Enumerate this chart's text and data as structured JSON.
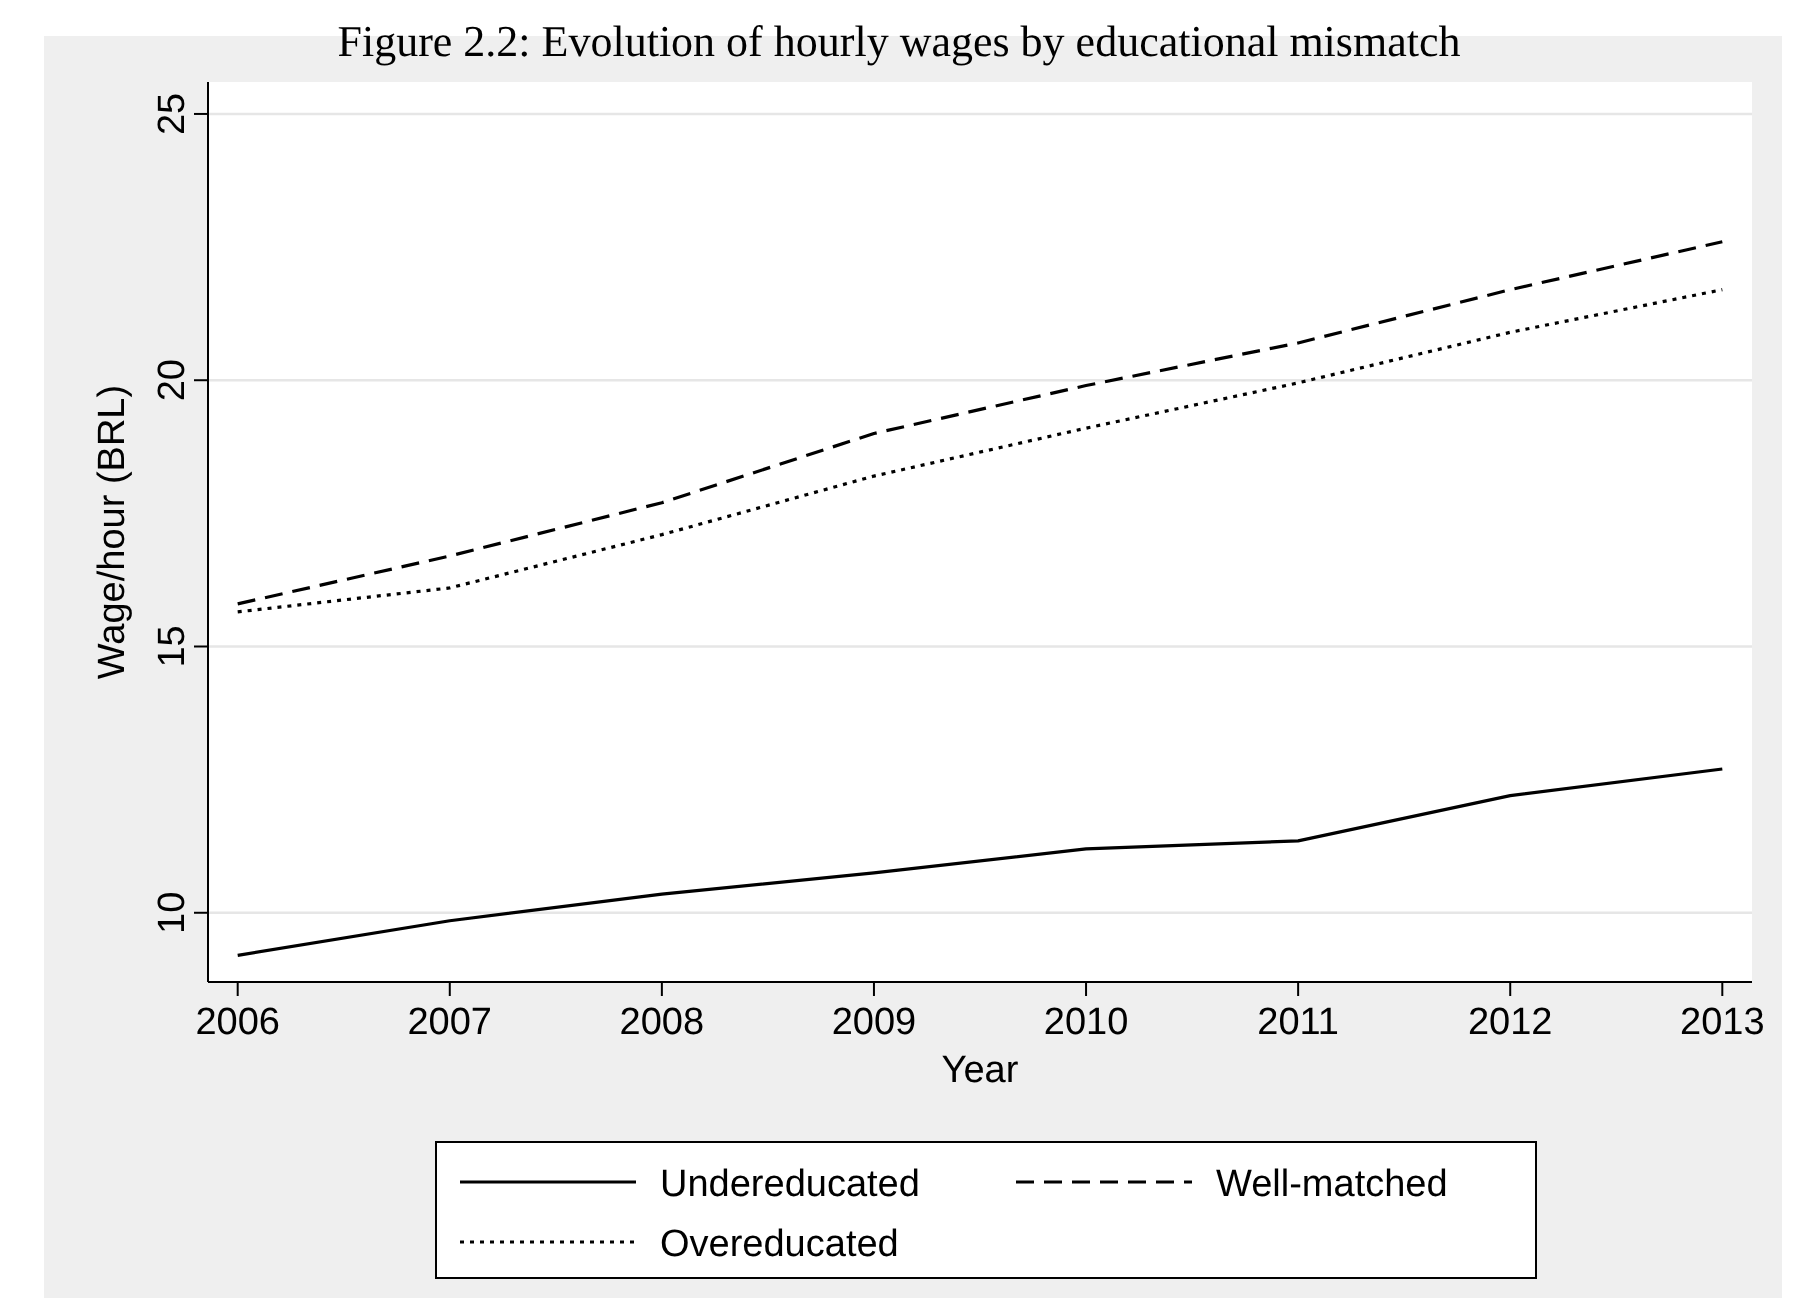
{
  "chart_data": {
    "type": "line",
    "title": "Figure 2.2: Evolution of hourly wages by educational mismatch",
    "xlabel": "Year",
    "ylabel": "Wage/hour (BRL)",
    "x": [
      2006,
      2007,
      2008,
      2009,
      2010,
      2011,
      2012,
      2013
    ],
    "xlim": [
      2005.86,
      2013.14
    ],
    "xticks": [
      2006,
      2007,
      2008,
      2009,
      2010,
      2011,
      2012,
      2013
    ],
    "ylim": [
      8.7,
      25.6
    ],
    "yticks": [
      10,
      15,
      20,
      25
    ],
    "grid": "y",
    "legend": "bottom",
    "series": [
      {
        "name": "Undereducated",
        "color": "#000000",
        "line_style": "solid",
        "values": [
          9.2,
          9.85,
          10.35,
          10.75,
          11.2,
          11.35,
          12.2,
          12.7
        ]
      },
      {
        "name": "Well-matched",
        "color": "#000000",
        "line_style": "dashed",
        "values": [
          15.8,
          16.7,
          17.7,
          19.0,
          19.9,
          20.7,
          21.7,
          22.6
        ]
      },
      {
        "name": "Overeducated",
        "color": "#000000",
        "line_style": "dotted",
        "values": [
          15.65,
          16.1,
          17.1,
          18.2,
          19.1,
          19.95,
          20.9,
          21.7
        ]
      }
    ]
  }
}
